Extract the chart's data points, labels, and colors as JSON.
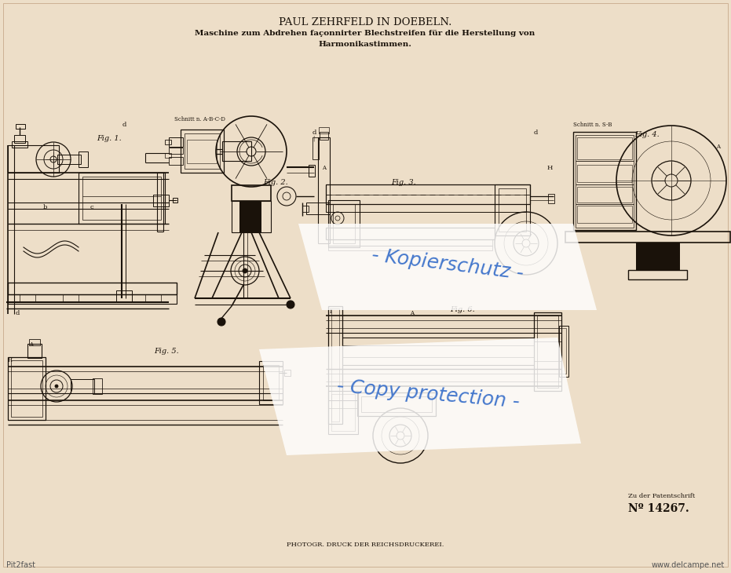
{
  "bg_color": "#eddec8",
  "paper_color": "#f0dfc0",
  "title_line1": "PAUL ZEHRFELD IN DOEBELN.",
  "title_line2": "Maschine zum Abdrehen façonnirter Blechstreifen für die Herstellung von",
  "title_line3": "Harmonikastimmen.",
  "watermark_line1": "- Kopierschutz -",
  "watermark_line2": "- Copy protection -",
  "bottom_text": "PHOTOGR. DRUCK DER REICHSDRUCKEREI.",
  "patent_label": "Zu der Patentschrift",
  "patent_number": "Nº 14267.",
  "source_label": "Pit2fast",
  "website_label": "www.delcampe.net",
  "line_color": "#1a120a",
  "watermark_color": "#4477cc",
  "border_color": "#c0a080"
}
